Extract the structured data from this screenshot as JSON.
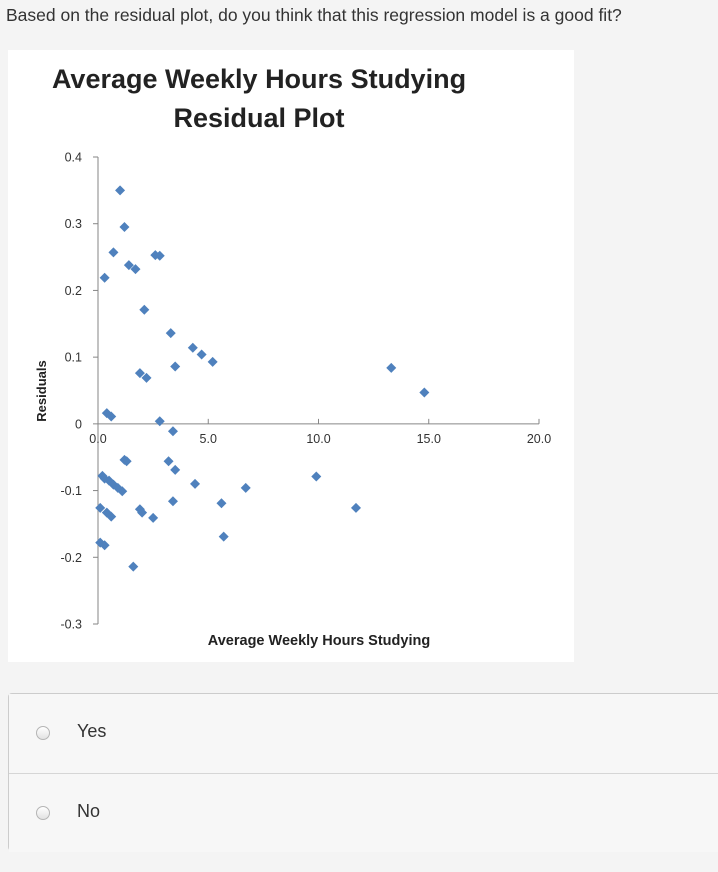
{
  "question": "Based on the residual plot, do you think that this regression model is a good fit?",
  "answer_options": [
    {
      "label": "Yes"
    },
    {
      "label": "No"
    }
  ],
  "chart_data": {
    "type": "scatter",
    "title_line1": "Average Weekly Hours Studying",
    "title_line2": "Residual Plot",
    "xlabel": "Average Weekly Hours Studying",
    "ylabel": "Residuals",
    "xlim": [
      0,
      20
    ],
    "ylim": [
      -0.3,
      0.4
    ],
    "x_ticks": [
      "0.0",
      "5.0",
      "10.0",
      "15.0",
      "20.0"
    ],
    "y_ticks": [
      "0.4",
      "0.3",
      "0.2",
      "0.1",
      "0",
      "-0.1",
      "-0.2",
      "-0.3"
    ],
    "grid": false,
    "marker_color": "#4f81bd",
    "points": [
      {
        "x": 1.0,
        "y": 0.35
      },
      {
        "x": 1.2,
        "y": 0.295
      },
      {
        "x": 0.7,
        "y": 0.257
      },
      {
        "x": 2.6,
        "y": 0.253
      },
      {
        "x": 2.8,
        "y": 0.252
      },
      {
        "x": 1.4,
        "y": 0.238
      },
      {
        "x": 1.7,
        "y": 0.232
      },
      {
        "x": 0.3,
        "y": 0.219
      },
      {
        "x": 2.1,
        "y": 0.171
      },
      {
        "x": 3.3,
        "y": 0.136
      },
      {
        "x": 4.3,
        "y": 0.114
      },
      {
        "x": 4.7,
        "y": 0.104
      },
      {
        "x": 5.2,
        "y": 0.093
      },
      {
        "x": 3.5,
        "y": 0.086
      },
      {
        "x": 13.3,
        "y": 0.084
      },
      {
        "x": 1.9,
        "y": 0.076
      },
      {
        "x": 2.2,
        "y": 0.069
      },
      {
        "x": 14.8,
        "y": 0.047
      },
      {
        "x": 0.4,
        "y": 0.016
      },
      {
        "x": 0.6,
        "y": 0.011
      },
      {
        "x": 2.8,
        "y": 0.004
      },
      {
        "x": 3.4,
        "y": -0.011
      },
      {
        "x": 1.2,
        "y": -0.054
      },
      {
        "x": 1.3,
        "y": -0.056
      },
      {
        "x": 3.2,
        "y": -0.056
      },
      {
        "x": 3.5,
        "y": -0.069
      },
      {
        "x": 0.2,
        "y": -0.078
      },
      {
        "x": 0.3,
        "y": -0.082
      },
      {
        "x": 0.5,
        "y": -0.085
      },
      {
        "x": 0.7,
        "y": -0.091
      },
      {
        "x": 0.9,
        "y": -0.096
      },
      {
        "x": 1.1,
        "y": -0.101
      },
      {
        "x": 4.4,
        "y": -0.09
      },
      {
        "x": 6.7,
        "y": -0.096
      },
      {
        "x": 9.9,
        "y": -0.079
      },
      {
        "x": 3.4,
        "y": -0.116
      },
      {
        "x": 5.6,
        "y": -0.119
      },
      {
        "x": 11.7,
        "y": -0.126
      },
      {
        "x": 0.1,
        "y": -0.126
      },
      {
        "x": 0.4,
        "y": -0.133
      },
      {
        "x": 0.6,
        "y": -0.139
      },
      {
        "x": 1.9,
        "y": -0.128
      },
      {
        "x": 2.0,
        "y": -0.133
      },
      {
        "x": 2.5,
        "y": -0.141
      },
      {
        "x": 5.7,
        "y": -0.169
      },
      {
        "x": 0.1,
        "y": -0.178
      },
      {
        "x": 0.3,
        "y": -0.182
      },
      {
        "x": 1.6,
        "y": -0.214
      }
    ]
  }
}
